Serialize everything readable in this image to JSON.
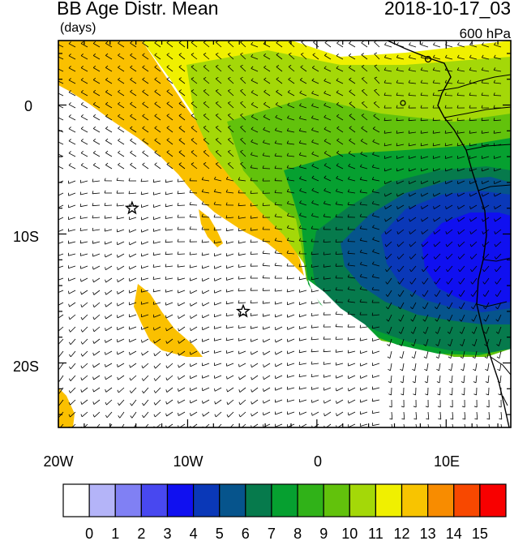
{
  "header": {
    "title": "BB Age Distr. Mean",
    "units": "(days)",
    "timestamp": "2018-10-17_03",
    "level": "600 hPa"
  },
  "axes": {
    "x_ticks": [
      "20W",
      "10W",
      "0",
      "10E"
    ],
    "y_ticks": [
      "0",
      "10S",
      "20S"
    ]
  },
  "colorbar": {
    "labels": [
      "0",
      "1",
      "2",
      "3",
      "4",
      "5",
      "6",
      "7",
      "8",
      "9",
      "10",
      "11",
      "12",
      "13",
      "14",
      "15"
    ],
    "colors": [
      "#ffffff",
      "#b4b4f8",
      "#8080f4",
      "#4848f0",
      "#1010f0",
      "#0a38b8",
      "#06548c",
      "#067a4c",
      "#06a030",
      "#30b218",
      "#62c20c",
      "#a4d808",
      "#f0f000",
      "#f8c400",
      "#f88c00",
      "#f84800",
      "#f80000"
    ]
  },
  "map": {
    "region_colors": {
      "white": "#ffffff",
      "orange": "#fac000",
      "yellow": "#f0f000",
      "lime": "#a4d808",
      "green": "#62c20c",
      "green2": "#30b218",
      "darkgreen": "#06a030",
      "teal": "#067a4c",
      "navy": "#06548c",
      "blue": "#1010f0",
      "blue2": "#0a38b8"
    },
    "markers": [
      {
        "name": "star-1",
        "lon": -14.3,
        "lat": -8.0
      },
      {
        "name": "star-2",
        "lon": -5.7,
        "lat": -16.0
      }
    ]
  }
}
